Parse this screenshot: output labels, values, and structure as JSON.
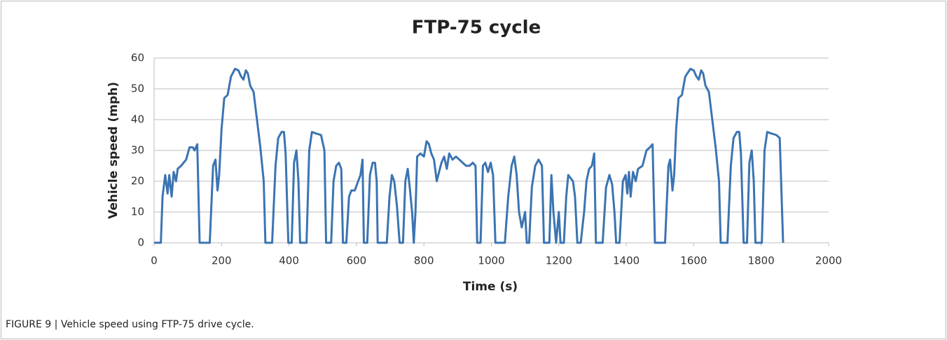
{
  "chart_data": {
    "type": "line",
    "title": "FTP-75 cycle",
    "x_label": "Time (s)",
    "y_label": "Vehicle speed (mph)",
    "caption": "FIGURE 9 | Vehicle speed using FTP-75 drive cycle.",
    "x": [
      0,
      20,
      25,
      33,
      40,
      45,
      52,
      58,
      65,
      70,
      80,
      95,
      105,
      115,
      120,
      128,
      135,
      165,
      175,
      182,
      188,
      193,
      200,
      208,
      218,
      228,
      240,
      250,
      258,
      265,
      272,
      278,
      285,
      295,
      305,
      315,
      325,
      330,
      350,
      360,
      368,
      378,
      385,
      390,
      398,
      408,
      415,
      422,
      428,
      433,
      452,
      460,
      468,
      480,
      495,
      505,
      510,
      525,
      532,
      540,
      548,
      555,
      560,
      570,
      578,
      585,
      595,
      605,
      612,
      618,
      622,
      632,
      640,
      648,
      655,
      660,
      663,
      690,
      698,
      705,
      712,
      720,
      728,
      738,
      745,
      752,
      758,
      765,
      770,
      775,
      780,
      790,
      800,
      808,
      815,
      822,
      830,
      838,
      845,
      852,
      860,
      868,
      875,
      885,
      895,
      905,
      915,
      925,
      935,
      945,
      953,
      958,
      968,
      975,
      982,
      990,
      998,
      1005,
      1012,
      1040,
      1050,
      1060,
      1068,
      1075,
      1082,
      1090,
      1100,
      1105,
      1112,
      1120,
      1130,
      1140,
      1150,
      1156,
      1172,
      1178,
      1184,
      1192,
      1200,
      1205,
      1215,
      1222,
      1228,
      1235,
      1242,
      1248,
      1255,
      1265,
      1275,
      1282,
      1290,
      1298,
      1305,
      1310,
      1330,
      1340,
      1350,
      1358,
      1365,
      1370,
      1380,
      1390,
      1398,
      1403,
      1408,
      1413,
      1420,
      1428,
      1435,
      1448,
      1460,
      1470,
      1478,
      1485,
      1515,
      1525,
      1530,
      1537,
      1542,
      1548,
      1555,
      1565,
      1575,
      1590,
      1600,
      1608,
      1615,
      1622,
      1628,
      1635,
      1645,
      1655,
      1665,
      1675,
      1680,
      1700,
      1710,
      1718,
      1728,
      1735,
      1740,
      1748,
      1758,
      1765,
      1772,
      1778,
      1783,
      1802,
      1810,
      1818,
      1830,
      1845,
      1855,
      1865
    ],
    "series": [
      {
        "name": "Vehicle speed",
        "color": "#3b74b2",
        "values": [
          0,
          0,
          15,
          22,
          16,
          22,
          15,
          23,
          20,
          24,
          25,
          27,
          31,
          31,
          30,
          32,
          0,
          0,
          25,
          27,
          17,
          22,
          37,
          47,
          48,
          54,
          56.5,
          56,
          54,
          53,
          56,
          55,
          51,
          49,
          40,
          31,
          20,
          0,
          0,
          25,
          34,
          36,
          36,
          29,
          0,
          0,
          26,
          30,
          20,
          0,
          0,
          30,
          36,
          35.5,
          35,
          30,
          0,
          0,
          20,
          25,
          26,
          24,
          0,
          0,
          15,
          17,
          17,
          20,
          22,
          27,
          0,
          0,
          22,
          26,
          26,
          20,
          0,
          0,
          15,
          22,
          20,
          12,
          0,
          0,
          20,
          24,
          18,
          10,
          0,
          10,
          28,
          29,
          28,
          33,
          32,
          29,
          27,
          20,
          23,
          26,
          28,
          24,
          29,
          27,
          28,
          27,
          26,
          25,
          25,
          26,
          25,
          0,
          0,
          25,
          26,
          23,
          26,
          22,
          0,
          0,
          15,
          25,
          28,
          22,
          10,
          5,
          10,
          0,
          0,
          18,
          25,
          27,
          25,
          0,
          0,
          22,
          10,
          0,
          10,
          0,
          0,
          15,
          22,
          21,
          20,
          15,
          0,
          0,
          10,
          20,
          24,
          25,
          29,
          0,
          0,
          18,
          22,
          19,
          10,
          0,
          0,
          20,
          22,
          16,
          23,
          15,
          23,
          20,
          24,
          25,
          30,
          31,
          32,
          0,
          0,
          25,
          27,
          17,
          22,
          37,
          47,
          48,
          54,
          56.5,
          56,
          54,
          53,
          56,
          55,
          51,
          49,
          40,
          31,
          20,
          0,
          0,
          25,
          34,
          36,
          36,
          29,
          0,
          0,
          26,
          30,
          20,
          0,
          0,
          30,
          36,
          35.5,
          35,
          34,
          0
        ]
      }
    ],
    "xlim": [
      0,
      2000
    ],
    "xticks": [
      0,
      200,
      400,
      600,
      800,
      1000,
      1200,
      1400,
      1600,
      1800,
      2000
    ],
    "ylim": [
      0,
      60
    ],
    "yticks": [
      0,
      10,
      20,
      30,
      40,
      50,
      60
    ],
    "grid": true
  }
}
